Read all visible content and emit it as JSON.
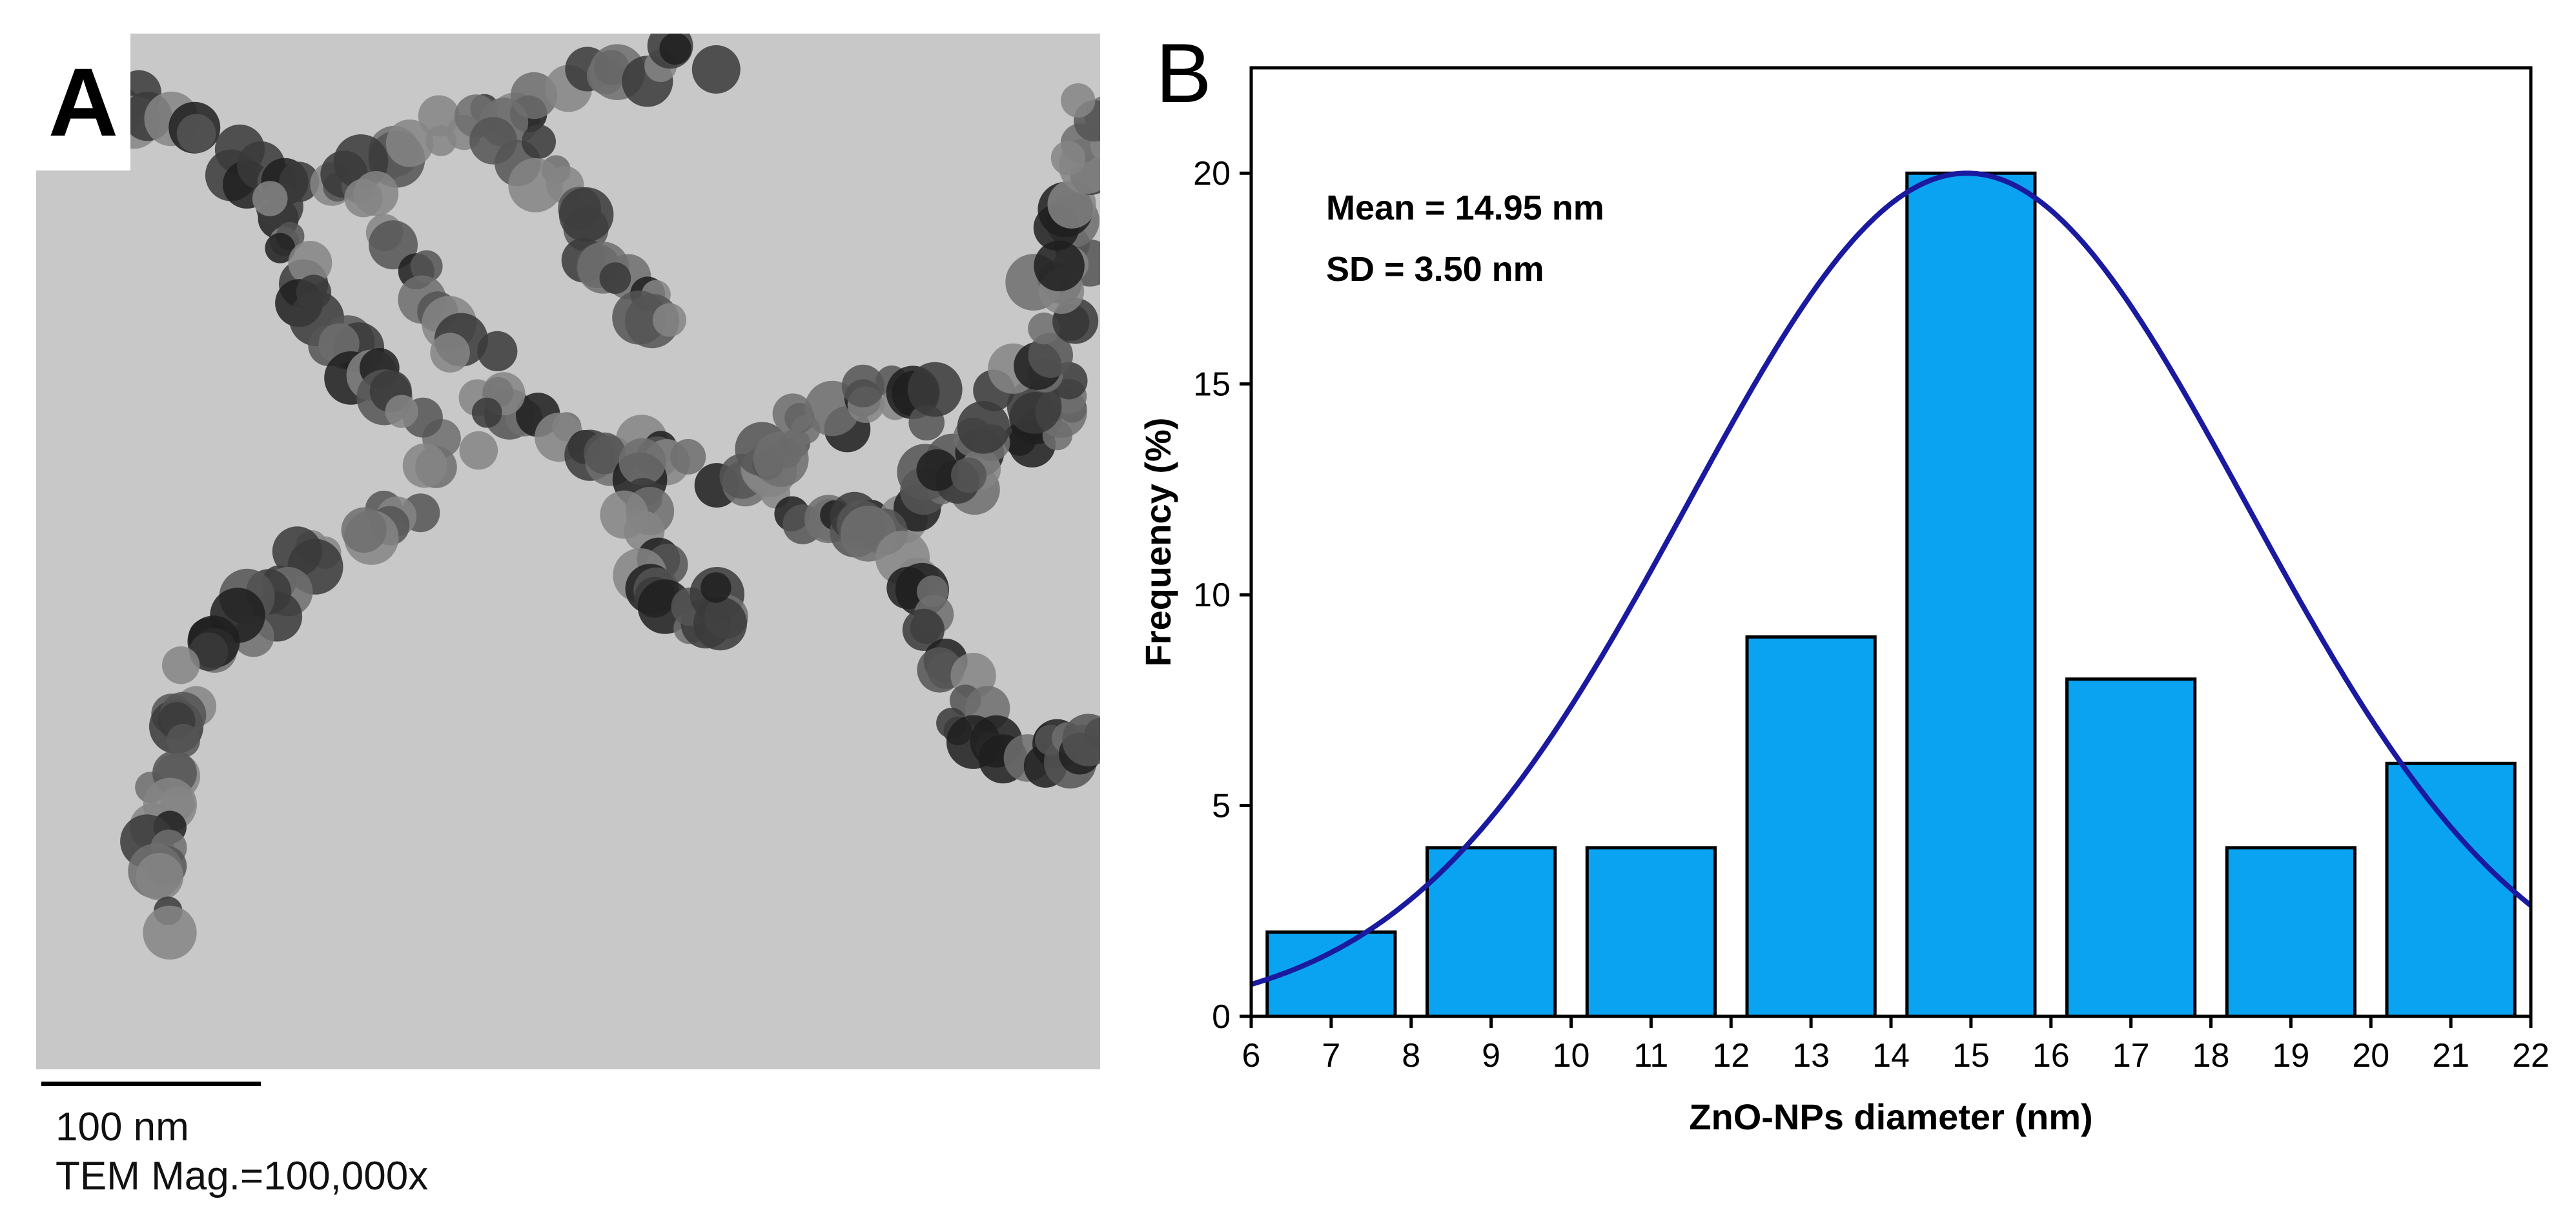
{
  "panel_a": {
    "label": "A",
    "scale_bar_text": "100 nm",
    "magnification_text": "TEM Mag.=100,000x",
    "background_color": "#c8c8c8",
    "particle_colors": [
      "#1f1f1f",
      "#3a3a3a",
      "#555555",
      "#6e6e6e",
      "#858585"
    ]
  },
  "panel_b": {
    "label": "B",
    "mean_text": "Mean = 14.95 nm",
    "sd_text": "SD = 3.50 nm"
  },
  "chart_data": {
    "type": "bar",
    "title": "",
    "xlabel": "ZnO-NPs diameter (nm)",
    "ylabel": "Frequency (%)",
    "xlim": [
      6,
      22
    ],
    "ylim": [
      0,
      22.5
    ],
    "xticks": [
      6,
      7,
      8,
      9,
      10,
      11,
      12,
      13,
      14,
      15,
      16,
      17,
      18,
      19,
      20,
      21,
      22
    ],
    "yticks": [
      0,
      5,
      10,
      15,
      20
    ],
    "bin_width": 1.6,
    "categories": [
      7,
      9,
      11,
      13,
      15,
      17,
      19,
      21
    ],
    "values": [
      2,
      4,
      4,
      9,
      20,
      8,
      4,
      6
    ],
    "bar_color": "#0aa3f2",
    "fit": {
      "type": "gaussian",
      "mean": 14.95,
      "sd": 3.5,
      "peak": 20,
      "color": "#1a1aa0"
    },
    "grid": false
  }
}
